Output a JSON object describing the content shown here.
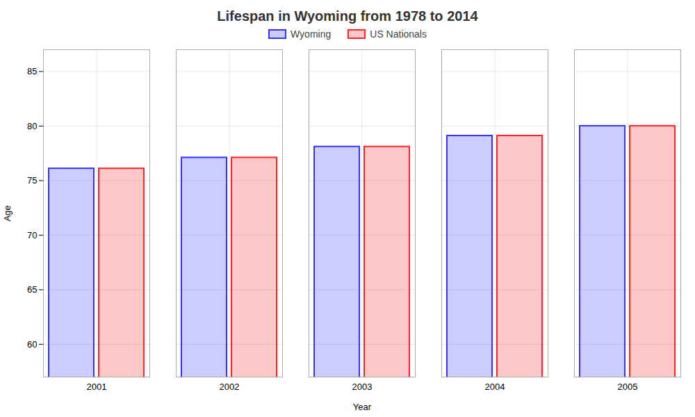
{
  "chart_data": {
    "type": "bar",
    "title": "Lifespan in Wyoming from 1978 to 2014",
    "xlabel": "Year",
    "ylabel": "Age",
    "categories": [
      "2001",
      "2002",
      "2003",
      "2004",
      "2005"
    ],
    "series": [
      {
        "name": "Wyoming",
        "color": "#3333ff",
        "values": [
          76.1,
          77.1,
          78.1,
          79.1,
          80.0
        ]
      },
      {
        "name": "US Nationals",
        "color": "#ff2222",
        "values": [
          76.1,
          77.1,
          78.1,
          79.1,
          80.0
        ]
      }
    ],
    "ylim": [
      57,
      87
    ],
    "yticks": [
      60,
      65,
      70,
      75,
      80,
      85
    ],
    "grid": true,
    "legend": "top"
  }
}
